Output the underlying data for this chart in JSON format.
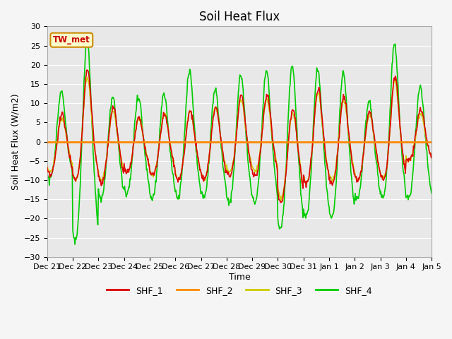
{
  "title": "Soil Heat Flux",
  "xlabel": "Time",
  "ylabel": "Soil Heat Flux (W/m2)",
  "ylim": [
    -30,
    30
  ],
  "yticks": [
    -30,
    -25,
    -20,
    -15,
    -10,
    -5,
    0,
    5,
    10,
    15,
    20,
    25,
    30
  ],
  "x_tick_labels": [
    "Dec 21",
    "Dec 22",
    "Dec 23",
    "Dec 24",
    "Dec 25",
    "Dec 26",
    "Dec 27",
    "Dec 28",
    "Dec 29",
    "Dec 30",
    "Dec 31",
    "Jan 1",
    "Jan 2",
    "Jan 3",
    "Jan 4",
    "Jan 5"
  ],
  "annotation_text": "TW_met",
  "annotation_bg": "#ffffcc",
  "annotation_border": "#cc8800",
  "annotation_text_color": "#cc0000",
  "line_colors": {
    "SHF_1": "#dd0000",
    "SHF_2": "#ff8800",
    "SHF_3": "#cccc00",
    "SHF_4": "#00cc00"
  },
  "plot_bg": "#e8e8e8",
  "fig_bg": "#f5f5f5",
  "grid_color": "#ffffff",
  "title_fontsize": 12,
  "axis_label_fontsize": 9,
  "tick_fontsize": 8,
  "legend_fontsize": 9
}
